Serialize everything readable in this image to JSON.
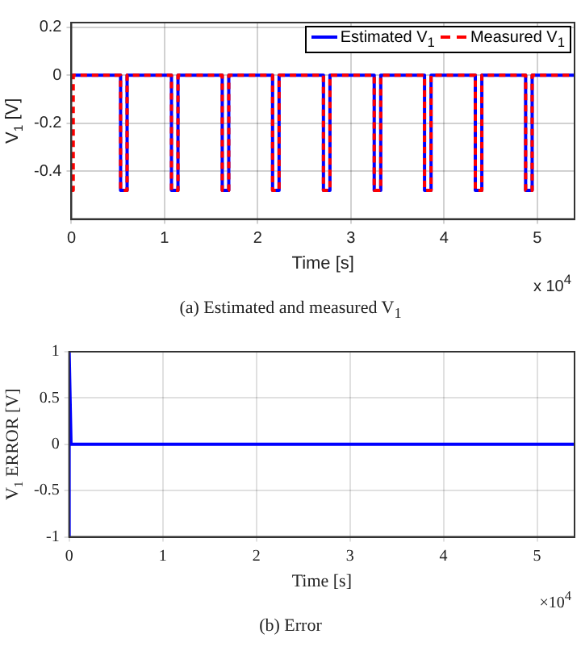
{
  "chart_data": [
    {
      "type": "line",
      "xlabel": "Time [s]",
      "ylabel": "V$_{1}$ [V]",
      "xlim": [
        0,
        5.4
      ],
      "ylim": [
        -0.6,
        0.22
      ],
      "xticks": [
        0,
        1,
        2,
        3,
        4,
        5
      ],
      "yticks": [
        -0.4,
        -0.2,
        0,
        0.2
      ],
      "grid": true,
      "legend": "top right",
      "marker": "none",
      "annotations": [
        "x 10$^{4}$",
        "(a) Estimated and measured V$_{1}$"
      ],
      "series": [
        {
          "name": "Estimated V$_{1}$",
          "color": "#0000ff",
          "line_style": "solid",
          "x": [
            0,
            0.528,
            0.528,
            0.598,
            0.598,
            1.074,
            1.074,
            1.144,
            1.144,
            1.619,
            1.619,
            1.689,
            1.689,
            2.159,
            2.159,
            2.229,
            2.229,
            2.705,
            2.705,
            2.775,
            2.775,
            3.25,
            3.25,
            3.32,
            3.32,
            3.79,
            3.79,
            3.86,
            3.86,
            4.335,
            4.335,
            4.405,
            4.405,
            4.875,
            4.875,
            4.945,
            4.945,
            5.4
          ],
          "values": [
            0,
            0,
            -0.48,
            -0.48,
            0,
            0,
            -0.48,
            -0.48,
            0,
            0,
            -0.48,
            -0.48,
            0,
            0,
            -0.48,
            -0.48,
            0,
            0,
            -0.48,
            -0.48,
            0,
            0,
            -0.48,
            -0.48,
            0,
            0,
            -0.48,
            -0.48,
            0,
            0,
            -0.48,
            -0.48,
            0,
            0,
            -0.48,
            -0.48,
            0,
            0
          ]
        },
        {
          "name": "Measured V$_{1}$",
          "color": "#ff0000",
          "line_style": "dashed",
          "x": [
            0,
            0.02,
            0.02,
            0.528,
            0.528,
            0.598,
            0.598,
            1.074,
            1.074,
            1.144,
            1.144,
            1.619,
            1.619,
            1.689,
            1.689,
            2.159,
            2.159,
            2.229,
            2.229,
            2.705,
            2.705,
            2.775,
            2.775,
            3.25,
            3.25,
            3.32,
            3.32,
            3.79,
            3.79,
            3.86,
            3.86,
            4.335,
            4.335,
            4.405,
            4.405,
            4.875,
            4.875,
            4.945,
            4.945,
            5.4
          ],
          "values": [
            -0.48,
            -0.48,
            0,
            0,
            -0.48,
            -0.48,
            0,
            0,
            -0.48,
            -0.48,
            0,
            0,
            -0.48,
            -0.48,
            0,
            0,
            -0.48,
            -0.48,
            0,
            0,
            -0.48,
            -0.48,
            0,
            0,
            -0.48,
            -0.48,
            0,
            0,
            -0.48,
            -0.48,
            0,
            0,
            -0.48,
            -0.48,
            0,
            0,
            -0.48,
            -0.48,
            0,
            0
          ]
        }
      ]
    },
    {
      "type": "line",
      "xlabel": "Time [s]",
      "ylabel": "V$_{1}$ ERROR [V]",
      "xlim": [
        0,
        5.4
      ],
      "ylim": [
        -1,
        1
      ],
      "xticks": [
        0,
        1,
        2,
        3,
        4,
        5
      ],
      "yticks": [
        -1,
        -0.5,
        0,
        0.5,
        1
      ],
      "grid": true,
      "marker": "none",
      "annotations": [
        "×10$^{4}$",
        "(b) Error"
      ],
      "series": [
        {
          "color": "#0000ff",
          "line_style": "solid",
          "x": [
            0,
            0,
            0.02,
            5.4
          ],
          "values": [
            -1,
            1,
            0,
            0
          ]
        }
      ]
    }
  ]
}
